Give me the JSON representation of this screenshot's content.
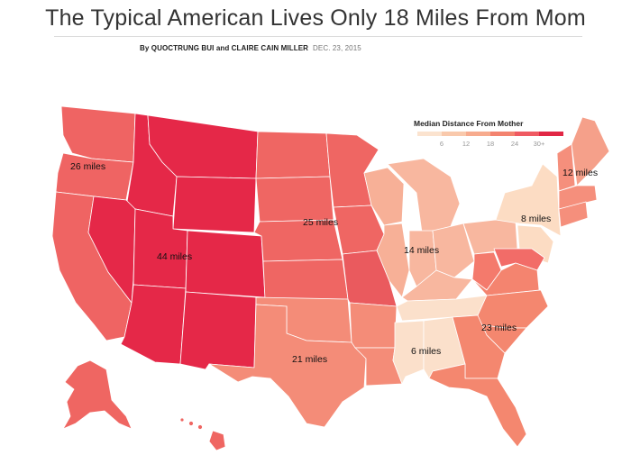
{
  "header": {
    "title": "The Typical American Lives Only 18 Miles From Mom",
    "byline": "By QUOCTRUNG BUI and CLAIRE CAIN MILLER",
    "date": "DEC. 23, 2015"
  },
  "legend": {
    "title": "Median Distance From Mother",
    "ticks": [
      "6",
      "12",
      "18",
      "24",
      "30+"
    ],
    "colors": [
      "#fbe3cf",
      "#f9c9ac",
      "#f7ab8e",
      "#f3836f",
      "#ef5a62",
      "#e12745"
    ]
  },
  "region_labels": [
    {
      "text": "26 miles",
      "region": "Northwest"
    },
    {
      "text": "44 miles",
      "region": "Mountain West"
    },
    {
      "text": "25 miles",
      "region": "Great Plains"
    },
    {
      "text": "14 miles",
      "region": "Great Lakes"
    },
    {
      "text": "8 miles",
      "region": "New York / New Jersey"
    },
    {
      "text": "12 miles",
      "region": "New England"
    },
    {
      "text": "23 miles",
      "region": "South Atlantic"
    },
    {
      "text": "21 miles",
      "region": "South Central"
    },
    {
      "text": "6 miles",
      "region": "Deep South"
    }
  ],
  "colors": {
    "mountain": "#e52848",
    "northwest": "#ee6060",
    "plains": "#ef6663",
    "plains_dark": "#ea5a5e",
    "south_central": "#f48c78",
    "great_lakes": "#f8b79f",
    "midwest_light": "#f7b097",
    "deep_south": "#fbe0cb",
    "ny_nj": "#fcdcc3",
    "new_england": "#f58f7c",
    "south_atlantic": "#f4876f",
    "alaska": "#ef6662",
    "hawaii": "#ef6662"
  }
}
